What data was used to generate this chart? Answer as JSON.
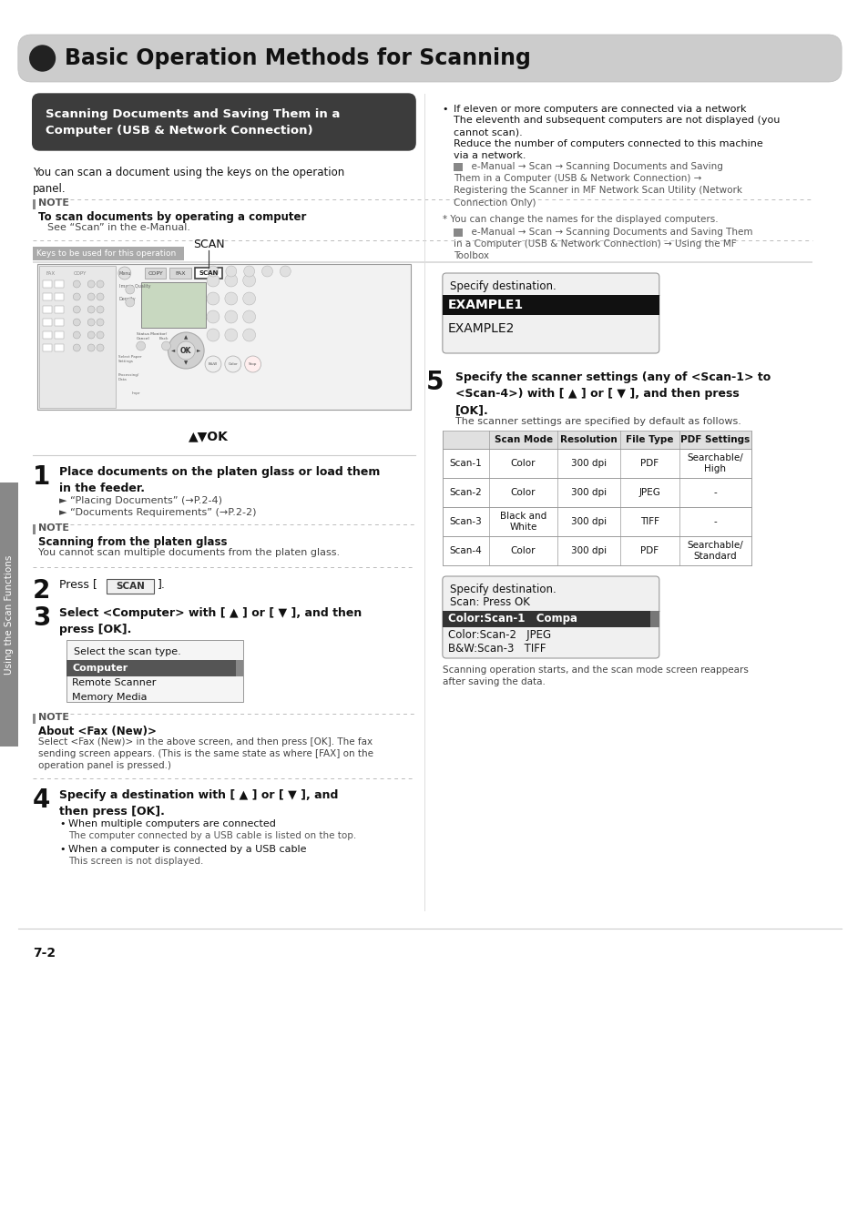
{
  "page_bg": "#ffffff",
  "title_bar_bg": "#cccccc",
  "title_bar_text": "Basic Operation Methods for Scanning",
  "section_header_bg": "#3c3c3c",
  "section_header_text": "Scanning Documents and Saving Them in a\nComputer (USB & Network Connection)",
  "body_text_intro": "You can scan a document using the keys on the operation\npanel.",
  "note1_header": "To scan documents by operating a computer",
  "note1_body": "See “Scan” in the e-Manual.",
  "keys_label": "Keys to be used for this operation",
  "arrow_ok_label": "▲▼OK",
  "step1_num": "1",
  "step1_text": "Place documents on the platen glass or load them\nin the feeder.",
  "step1_sub1": "► “Placing Documents” (→P.2-4)",
  "step1_sub2": "► “Documents Requirements” (→P.2-2)",
  "note2_header": "Scanning from the platen glass",
  "note2_body": "You cannot scan multiple documents from the platen glass.",
  "step2_num": "2",
  "step3_num": "3",
  "step3_text": "Select <Computer> with [ ▲ ] or [ ▼ ], and then\npress [OK].",
  "select_box_title": "Select the scan type.",
  "select_items": [
    "Computer",
    "Remote Scanner",
    "Memory Media"
  ],
  "note3_header": "About <Fax (New)>",
  "note3_body": "Select <Fax (New)> in the above screen, and then press [OK]. The fax\nsending screen appears. (This is the same state as where [FAX] on the\noperation panel is pressed.)",
  "step4_num": "4",
  "step4_text": "Specify a destination with [ ▲ ] or [ ▼ ], and\nthen press [OK].",
  "step4_bullet1": "When multiple computers are connected",
  "step4_bullet1b": "The computer connected by a USB cable is listed on the top.",
  "step4_bullet2": "When a computer is connected by a USB cable",
  "step4_bullet2b": "This screen is not displayed.",
  "right_bullet1a": "If eleven or more computers are connected via a network",
  "right_bullet1b": "The eleventh and subsequent computers are not displayed (you\ncannot scan).",
  "right_bullet1c": "Reduce the number of computers connected to this machine\nvia a network.",
  "right_emanual1_icon": "e-Manual → Scan → Scanning Documents and Saving\nThem in a Computer (USB & Network Connection) →\nRegistering the Scanner in MF Network Scan Utility (Network\nConnection Only)",
  "right_star": "* You can change the names for the displayed computers.",
  "right_emanual2_icon": "e-Manual → Scan → Scanning Documents and Saving Them\nin a Computer (USB & Network Connection) → Using the MF\nToolbox",
  "specify_dest1_title": "Specify destination.",
  "specify_dest1_line1": "EXAMPLE1",
  "specify_dest1_line2": "EXAMPLE2",
  "step5_num": "5",
  "step5_text": "Specify the scanner settings (any of <Scan-1> to\n<Scan-4>) with [ ▲ ] or [ ▼ ], and then press\n[OK].",
  "step5_sub": "The scanner settings are specified by default as follows.",
  "table_col_labels": [
    "",
    "Scan Mode",
    "Resolution",
    "File Type",
    "PDF Settings"
  ],
  "table_col_widths": [
    52,
    75,
    70,
    65,
    80
  ],
  "table_rows": [
    [
      "Scan-1",
      "Color",
      "300 dpi",
      "PDF",
      "Searchable/\nHigh"
    ],
    [
      "Scan-2",
      "Color",
      "300 dpi",
      "JPEG",
      "-"
    ],
    [
      "Scan-3",
      "Black and\nWhite",
      "300 dpi",
      "TIFF",
      "-"
    ],
    [
      "Scan-4",
      "Color",
      "300 dpi",
      "PDF",
      "Searchable/\nStandard"
    ]
  ],
  "specify_dest2_title": "Specify destination.",
  "specify_dest2_line1": "Scan: Press OK",
  "specify_dest2_items": [
    "Color:Scan-1   Compa",
    "Color:Scan-2   JPEG",
    "B&W:Scan-3   TIFF"
  ],
  "step5_after": "Scanning operation starts, and the scan mode screen reappears\nafter saving the data.",
  "sidebar_text": "Using the Scan Functions",
  "page_num": "7-2"
}
